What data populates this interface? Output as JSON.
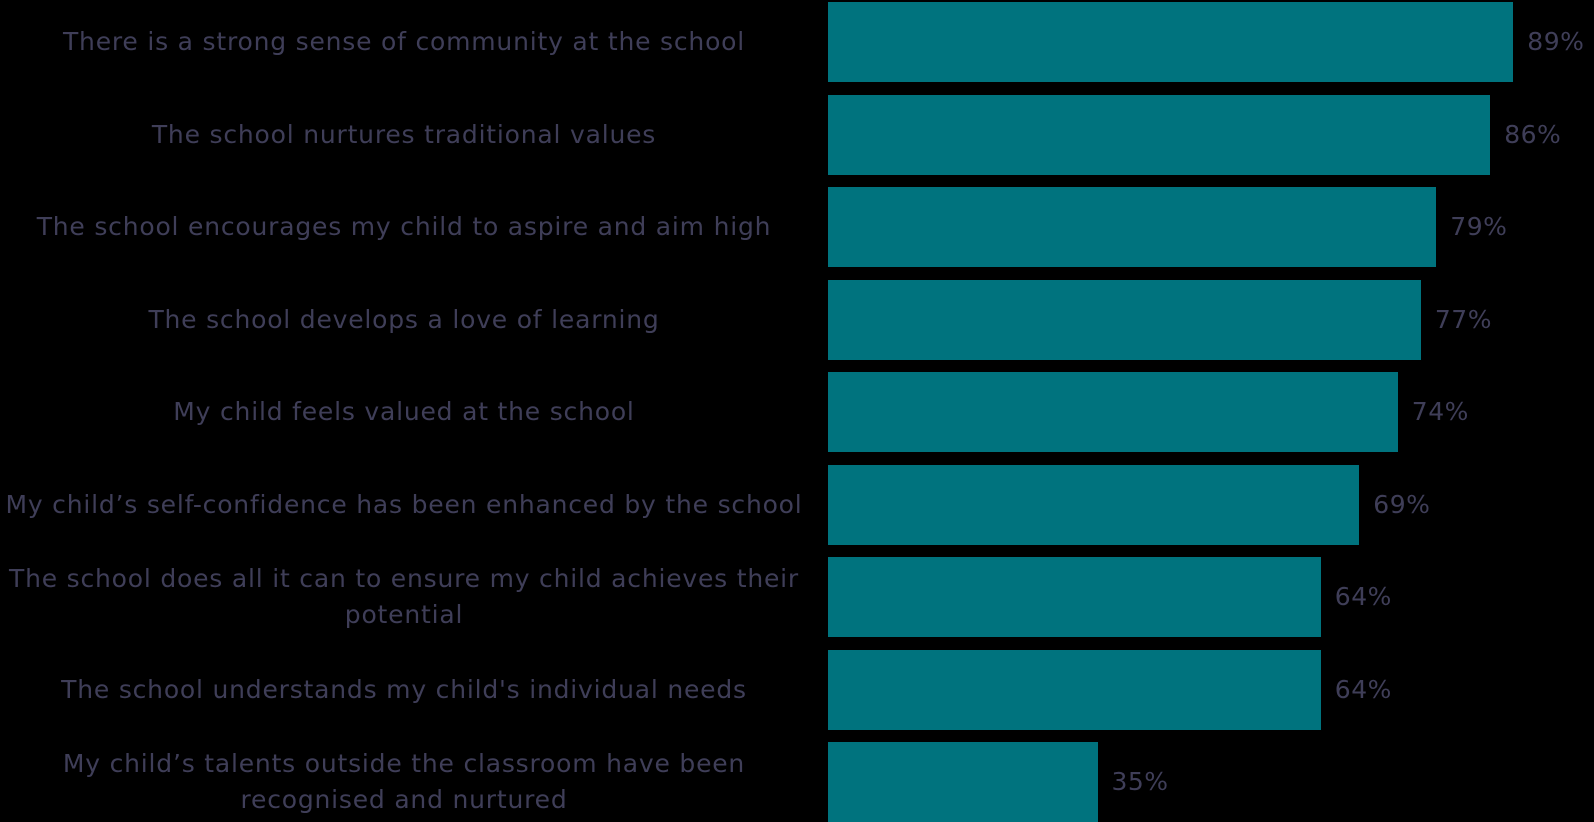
{
  "colors": {
    "background": "#000000",
    "bar": "#00737e",
    "text": "#3f3e58"
  },
  "chart_data": {
    "type": "bar",
    "orientation": "horizontal",
    "title": "",
    "xlabel": "",
    "ylabel": "",
    "xlim": [
      0,
      100
    ],
    "grid": false,
    "legend": "none",
    "categories": [
      "There is a strong sense of community at the school",
      "The school nurtures traditional values",
      "The school encourages my child to aspire and aim high",
      "The school develops a love of learning",
      "My child feels valued at the school",
      "My child’s self-confidence has been enhanced by the school",
      "The school does all it can to ensure my child achieves their potential",
      "The school understands my child's individual needs",
      "My child’s talents outside the classroom have been recognised and nurtured"
    ],
    "values": [
      89,
      86,
      79,
      77,
      74,
      69,
      64,
      64,
      35
    ],
    "value_labels": [
      "89%",
      "86%",
      "79%",
      "77%",
      "74%",
      "69%",
      "64%",
      "64%",
      "35%"
    ]
  }
}
